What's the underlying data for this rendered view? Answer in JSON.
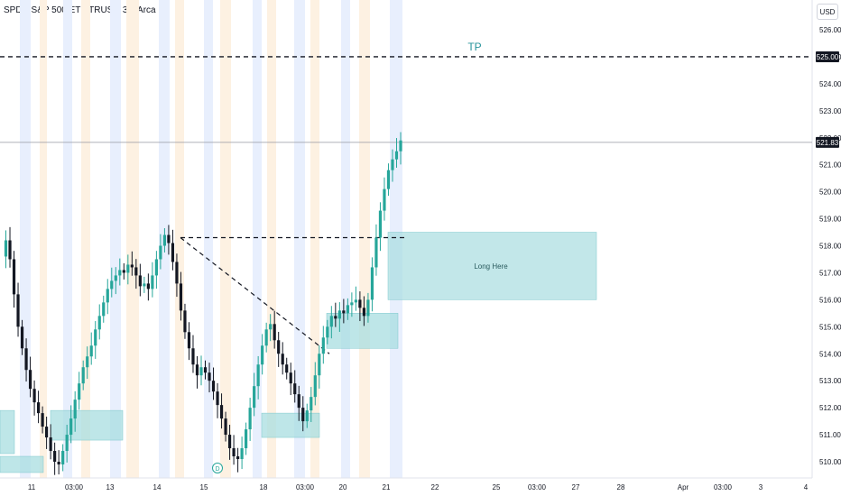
{
  "header": {
    "title": "SPDR S&P 500 ETF TRUST, 30, Arca",
    "currency": "USD"
  },
  "colors": {
    "up": "#26a69a",
    "down": "#131722",
    "zone_fill": "#a8dde0",
    "zone_stroke": "#7cc7cc",
    "session_blue": "#e8effd",
    "session_orange": "#fdf1e2",
    "tp_text": "#26939b"
  },
  "chart_data": {
    "type": "candlestick",
    "ylim": [
      509.5,
      526.8
    ],
    "price_ticks": [
      510,
      511,
      512,
      513,
      514,
      515,
      516,
      517,
      518,
      519,
      520,
      521,
      522,
      523,
      524,
      525,
      526
    ],
    "x_ticks": [
      "11",
      "03:00",
      "13",
      "14",
      "15",
      "18",
      "03:00",
      "20",
      "21",
      "22",
      "25",
      "03:00",
      "27",
      "28",
      "Apr",
      "03:00",
      "3",
      "4"
    ],
    "price_series": [
      517.6,
      518.2,
      517.5,
      516.2,
      515.0,
      514.2,
      513.4,
      512.7,
      512.2,
      511.8,
      511.3,
      510.9,
      510.4,
      510.0,
      509.9,
      510.4,
      511.0,
      511.6,
      512.3,
      512.9,
      513.5,
      513.9,
      514.3,
      514.9,
      515.4,
      515.9,
      516.4,
      516.7,
      516.9,
      517.1,
      517.0,
      517.3,
      517.2,
      516.9,
      516.5,
      516.6,
      516.4,
      516.9,
      517.5,
      518.0,
      518.4,
      518.1,
      517.4,
      516.6,
      515.6,
      514.8,
      514.2,
      513.6,
      513.2,
      513.5,
      513.3,
      513.0,
      512.6,
      512.1,
      511.6,
      511.0,
      510.5,
      510.2,
      510.1,
      510.5,
      511.2,
      512.0,
      512.8,
      513.6,
      514.3,
      514.9,
      515.1,
      514.5,
      514.0,
      513.6,
      513.3,
      512.9,
      512.5,
      512.0,
      511.5,
      511.9,
      512.4,
      513.2,
      514.0,
      514.6,
      515.0,
      515.4,
      515.3,
      515.6,
      515.5,
      515.8,
      515.9,
      516.0,
      515.7,
      515.4,
      516.0,
      517.2,
      518.3,
      519.3,
      520.1,
      520.8,
      521.2,
      521.5,
      521.9
    ],
    "current_price": "521.83",
    "tp_price": "525.00",
    "tp_label": "TP",
    "long_zone_label": "Long Here",
    "long_zone": [
      516.0,
      518.5
    ],
    "demand_zones": [
      {
        "low": 510.3,
        "high": 511.9
      },
      {
        "low": 510.8,
        "high": 511.9
      },
      {
        "low": 514.2,
        "high": 515.5
      },
      {
        "low": 509.6,
        "high": 510.2
      },
      {
        "low": 510.9,
        "high": 511.8
      }
    ],
    "trend_levels": {
      "high": 518.3,
      "low": 514.0
    },
    "dividend_marker": "D"
  }
}
